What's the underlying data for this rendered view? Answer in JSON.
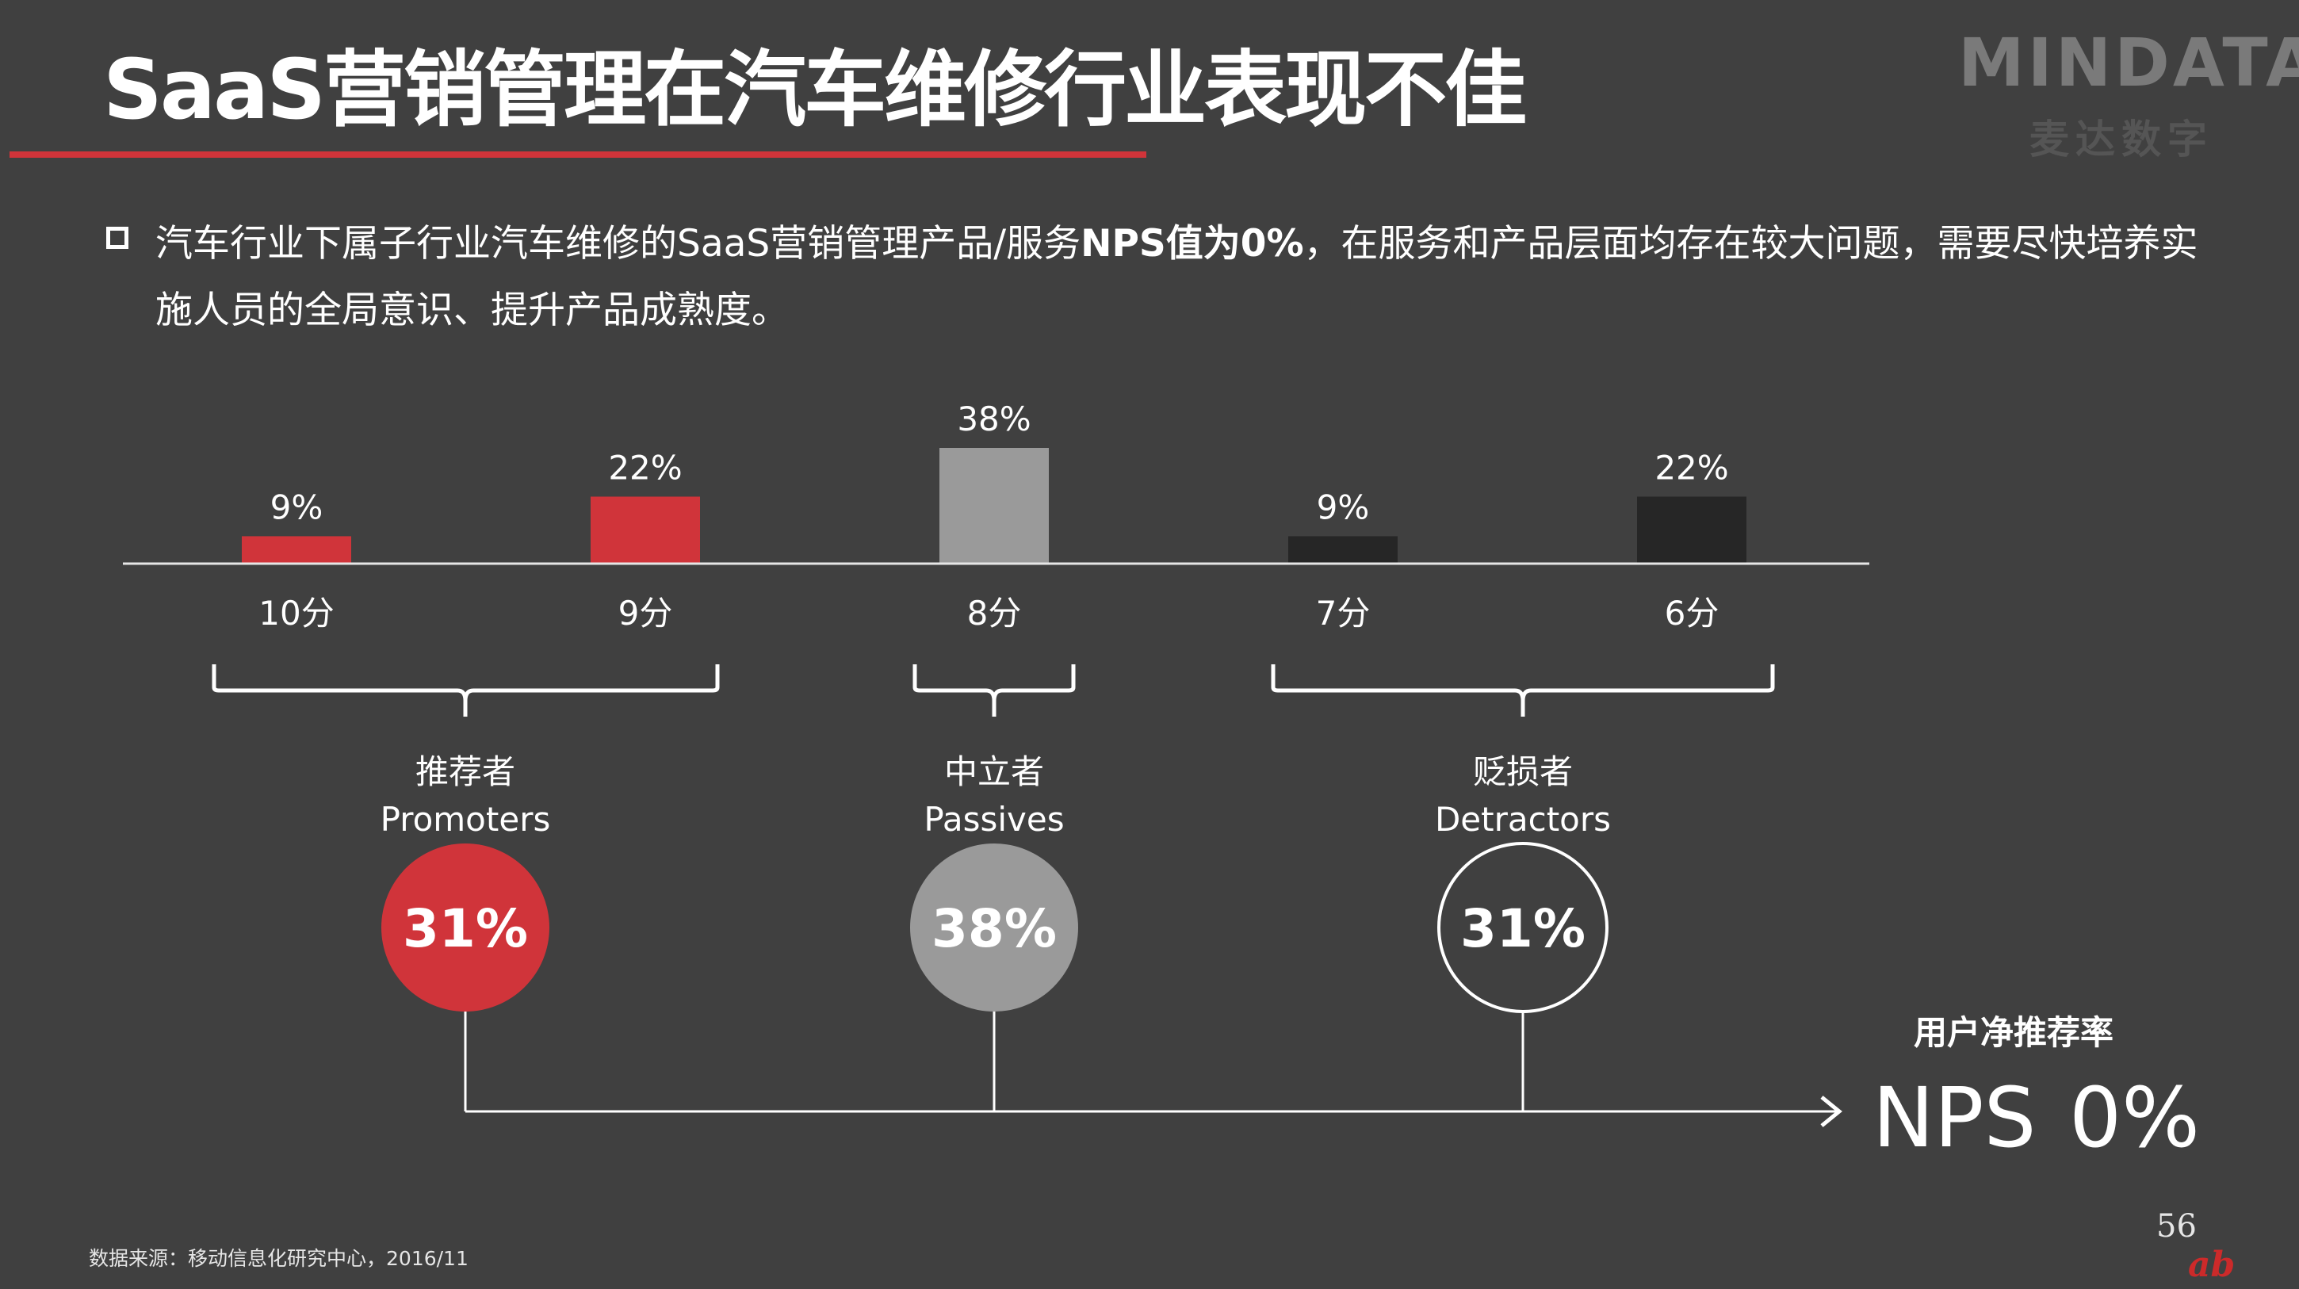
{
  "slide": {
    "title": "SaaS营销管理在汽车维修行业表现不佳",
    "summary_part1": "汽车行业下属子行业汽车维修的SaaS营销管理产品/服务",
    "summary_bold": "NPS值为0%",
    "summary_part2": "，在服务和产品层面均存在较大问题，需要尽快培养实施人员的全局意识、提升产品成熟度。",
    "source": "数据来源：移动信息化研究中心，2016/11",
    "page_number": "56"
  },
  "logo": {
    "text": "MINDATA",
    "subtitle": "麦达数字"
  },
  "colors": {
    "background": "#404040",
    "promoter_red": "#d0343a",
    "passive_gray": "#9a9a9a",
    "detractor_dark": "#262626",
    "detractor_outline": "#ffffff"
  },
  "chart_data": {
    "type": "bar",
    "categories": [
      "10分",
      "9分",
      "8分",
      "7分",
      "6分"
    ],
    "values": [
      9,
      22,
      38,
      9,
      22
    ],
    "value_labels": [
      "9%",
      "22%",
      "38%",
      "9%",
      "22%"
    ],
    "bar_groups": [
      "promoter",
      "promoter",
      "passive",
      "detractor",
      "detractor"
    ],
    "ylim": [
      0,
      40
    ],
    "groups": [
      {
        "key": "promoter",
        "label_cn": "推荐者",
        "label_en": "Promoters",
        "share": 31,
        "share_label": "31%"
      },
      {
        "key": "passive",
        "label_cn": "中立者",
        "label_en": "Passives",
        "share": 38,
        "share_label": "38%"
      },
      {
        "key": "detractor",
        "label_cn": "贬损者",
        "label_en": "Detractors",
        "share": 31,
        "share_label": "31%"
      }
    ],
    "nps": {
      "caption": "用户净推荐率",
      "label": "NPS",
      "value": 0,
      "value_label": "0%"
    }
  }
}
